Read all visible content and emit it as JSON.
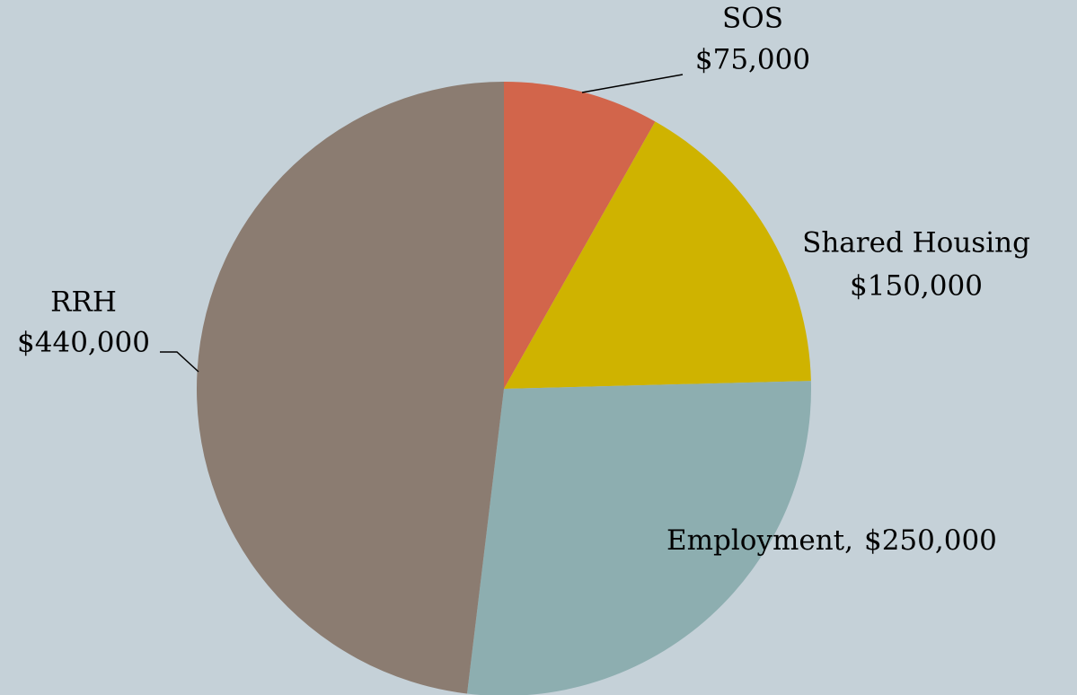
{
  "chart_data": {
    "type": "pie",
    "categories": [
      "SOS",
      "Shared Housing",
      "Employment,",
      "RRH"
    ],
    "values": [
      75000,
      150000,
      250000,
      440000
    ],
    "value_labels": [
      "$75,000",
      "$150,000",
      "$250,000",
      "$440,000"
    ],
    "colors": [
      "#d2654b",
      "#cfb300",
      "#8daeb0",
      "#8b7c71"
    ]
  }
}
